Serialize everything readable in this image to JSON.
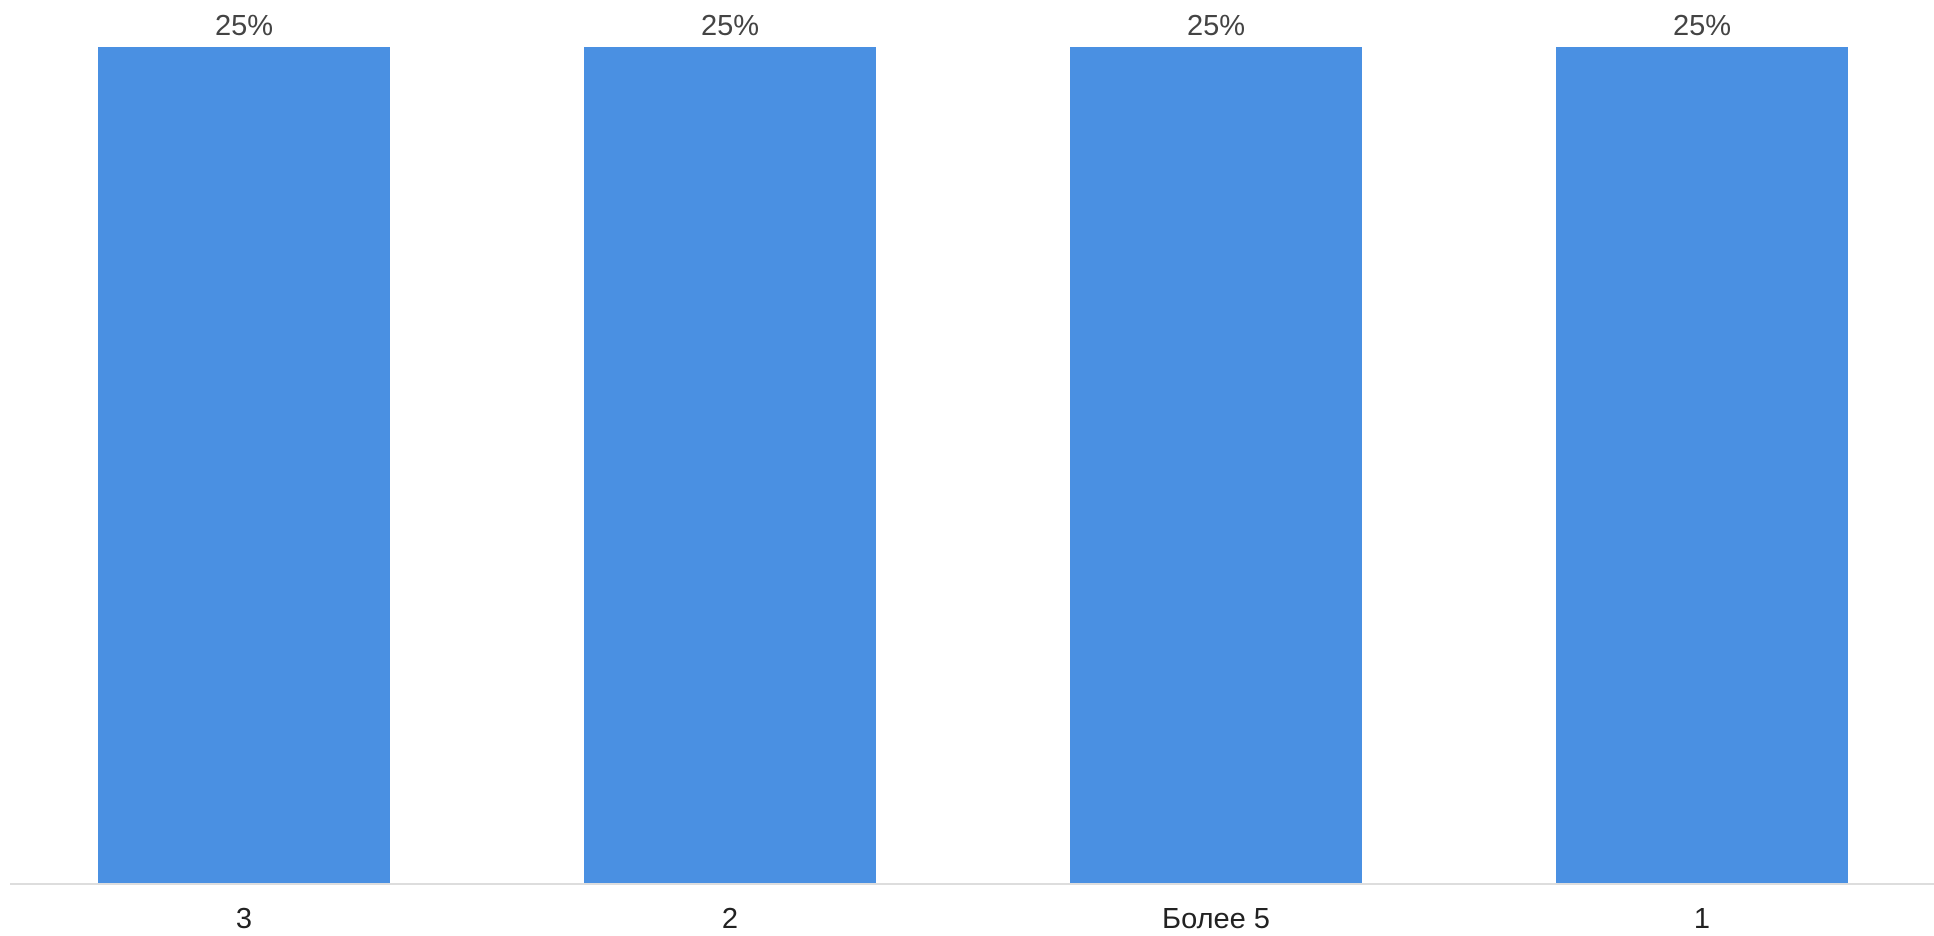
{
  "chart_data": {
    "type": "bar",
    "categories": [
      "3",
      "2",
      "Более 5",
      "1"
    ],
    "values": [
      25,
      25,
      25,
      25
    ],
    "data_labels": [
      "25%",
      "25%",
      "25%",
      "25%"
    ],
    "title": "",
    "xlabel": "",
    "ylabel": "",
    "ylim": [
      0,
      25
    ],
    "grid": false,
    "legend": "none",
    "colors": {
      "bar": "#4a90e2",
      "axis": "#dddddd"
    }
  }
}
